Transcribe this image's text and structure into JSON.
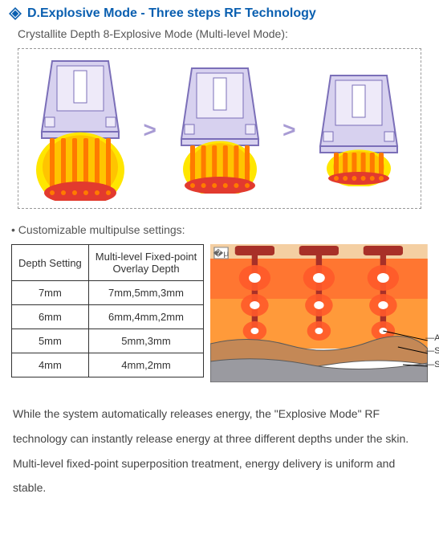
{
  "header": {
    "title": "D.Explosive Mode - Three steps RF Technology",
    "title_color": "#0a5fb0",
    "diamond_fill": "#0a5fb0"
  },
  "subtitle": "Crystallite Depth 8-Explosive Mode (Multi-level Mode):",
  "diagram": {
    "arrow_glyph": ">",
    "arrow_color": "#a89bd4",
    "steps": [
      {
        "needle_count": 6,
        "body_h": 90,
        "plume_w": 110,
        "plume_h": 72,
        "ellipse_ry": 14
      },
      {
        "needle_count": 6,
        "body_h": 90,
        "plume_w": 92,
        "plume_h": 54,
        "ellipse_ry": 11
      },
      {
        "needle_count": 6,
        "body_h": 90,
        "plume_w": 80,
        "plume_h": 36,
        "ellipse_ry": 8
      }
    ],
    "colors": {
      "device_outline": "#7b6fb8",
      "device_fill": "#d7d1ef",
      "device_fill_light": "#eeeaf9",
      "plume_outer": "#ffe600",
      "plume_inner": "#ffc400",
      "needle": "#ff7a00",
      "ellipse": "#e23a2e"
    }
  },
  "bullet": "• Customizable multipulse settings:",
  "table": {
    "columns": [
      "Depth Setting",
      "Multi-level Fixed-point\nOverlay Depth"
    ],
    "rows": [
      [
        "7mm",
        "7mm,5mm,3mm"
      ],
      [
        "6mm",
        "6mm,4mm,2mm"
      ],
      [
        "5mm",
        "5mm,3mm"
      ],
      [
        "4mm",
        "4mm,2mm"
      ]
    ]
  },
  "tissue_labels": [
    "Ablation",
    "Solidification",
    "Subnecrosis"
  ],
  "tissue_colors": {
    "skin_top": "#f4cfa2",
    "rf_fill": "#ff9a3a",
    "rf_deep": "#ff5a2a",
    "electrode": "#a83028",
    "electrode_tip": "#ffffff",
    "muscle1": "#c48856",
    "muscle2": "#9a9aa0",
    "muscle_line": "#5a5a5a"
  },
  "body_text": "While the system automatically releases energy, the \"Explosive Mode\" RF technology can instantly release energy at three different depths under the skin. Multi-level fixed-point superposition treatment, energy delivery is uniform and stable."
}
